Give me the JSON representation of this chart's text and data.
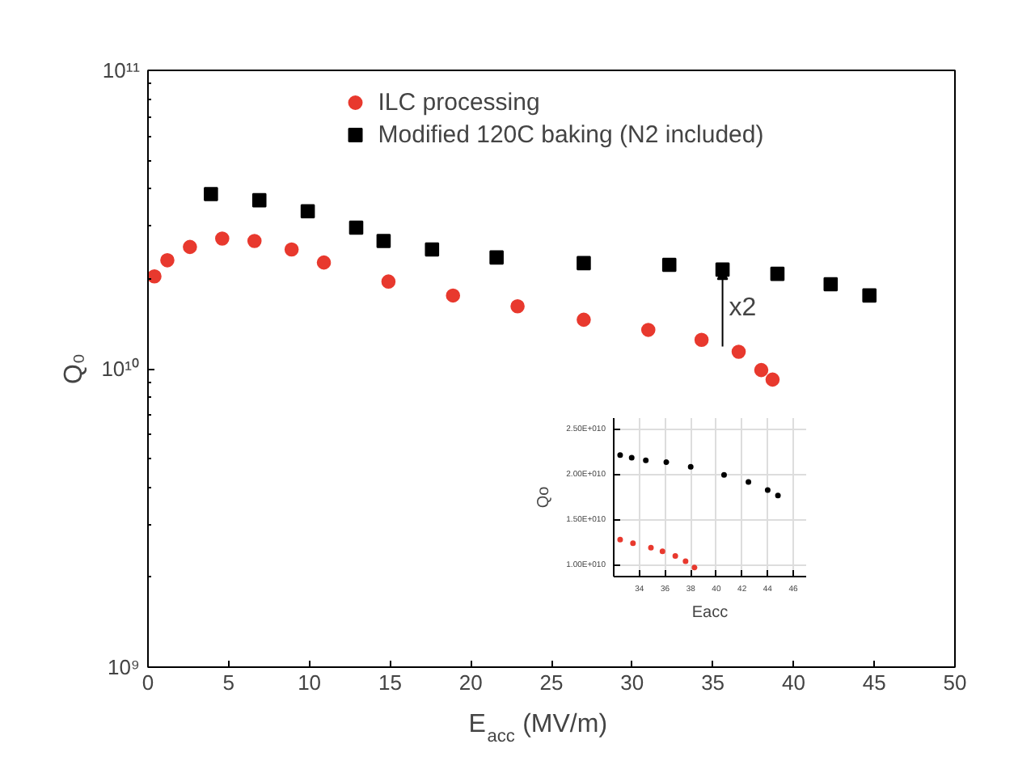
{
  "chart_data": [
    {
      "type": "scatter",
      "xlabel": "E$_{acc}$ (MV/m)",
      "ylabel": "Q₀",
      "xlim": [
        0,
        50
      ],
      "xticks": [
        0,
        5,
        10,
        15,
        20,
        25,
        30,
        35,
        40,
        45,
        50
      ],
      "ylim": [
        1000000000.0,
        100000000000.0
      ],
      "yticks": [
        {
          "value": 1000000000.0,
          "label": "10⁹"
        },
        {
          "value": 10000000000.0,
          "label": "10¹⁰"
        },
        {
          "value": 100000000000.0,
          "label": "10¹¹"
        }
      ],
      "log": "y",
      "grid": false,
      "legend": "top",
      "annotations": [
        {
          "text": "x2",
          "x": 35.6,
          "y": 21500000000.0
        }
      ],
      "series": [
        {
          "name": "ILC processing",
          "color": "#e8392e",
          "marker": "circle",
          "x": [
            0.4,
            1.2,
            2.6,
            4.6,
            6.6,
            8.9,
            10.9,
            14.9,
            18.9,
            22.9,
            27.0,
            31.0,
            34.3,
            36.6,
            38.0,
            38.7
          ],
          "values": [
            20400000000.0,
            23100000000.0,
            25600000000.0,
            27300000000.0,
            26800000000.0,
            25100000000.0,
            22700000000.0,
            19600000000.0,
            17600000000.0,
            16200000000.0,
            14600000000.0,
            13500000000.0,
            12500000000.0,
            11400000000.0,
            9900000000.0,
            9200000000.0
          ]
        },
        {
          "name": "Modified 120C baking (N2 included)",
          "color": "#000000",
          "marker": "square",
          "x": [
            3.9,
            6.9,
            9.9,
            12.9,
            14.6,
            17.6,
            21.6,
            27.0,
            32.3,
            35.6,
            39.0,
            42.3,
            44.7
          ],
          "values": [
            38500000000.0,
            36700000000.0,
            33700000000.0,
            29700000000.0,
            26800000000.0,
            25100000000.0,
            23600000000.0,
            22600000000.0,
            22300000000.0,
            21500000000.0,
            20800000000.0,
            19200000000.0,
            17600000000.0
          ]
        }
      ]
    },
    {
      "type": "scatter",
      "xlabel": "Eacc",
      "ylabel": "Qo",
      "xlim": [
        32,
        47
      ],
      "xticks": [
        34,
        36,
        38,
        40,
        42,
        44,
        46
      ],
      "ylim": [
        8700000000.0,
        26300000000.0
      ],
      "yticks": [
        {
          "value": 10000000000.0,
          "label": "1.00E+010"
        },
        {
          "value": 15000000000.0,
          "label": "1.50E+010"
        },
        {
          "value": 20000000000.0,
          "label": "2.00E+010"
        },
        {
          "value": 25000000000.0,
          "label": "2.50E+010"
        }
      ],
      "grid": true,
      "series": [
        {
          "color": "#e8392e",
          "marker": "circle",
          "x": [
            32.5,
            33.5,
            34.9,
            35.8,
            36.8,
            37.6,
            38.3
          ],
          "values": [
            12800000000.0,
            12400000000.0,
            11900000000.0,
            11500000000.0,
            11000000000.0,
            10400000000.0,
            9700000000.0
          ]
        },
        {
          "color": "#000000",
          "marker": "circle",
          "x": [
            32.5,
            33.4,
            34.5,
            36.1,
            38.0,
            40.6,
            42.5,
            44.0,
            44.8
          ],
          "values": [
            22200000000.0,
            21900000000.0,
            21600000000.0,
            21400000000.0,
            20900000000.0,
            20000000000.0,
            19200000000.0,
            18300000000.0,
            17700000000.0
          ]
        }
      ]
    }
  ]
}
